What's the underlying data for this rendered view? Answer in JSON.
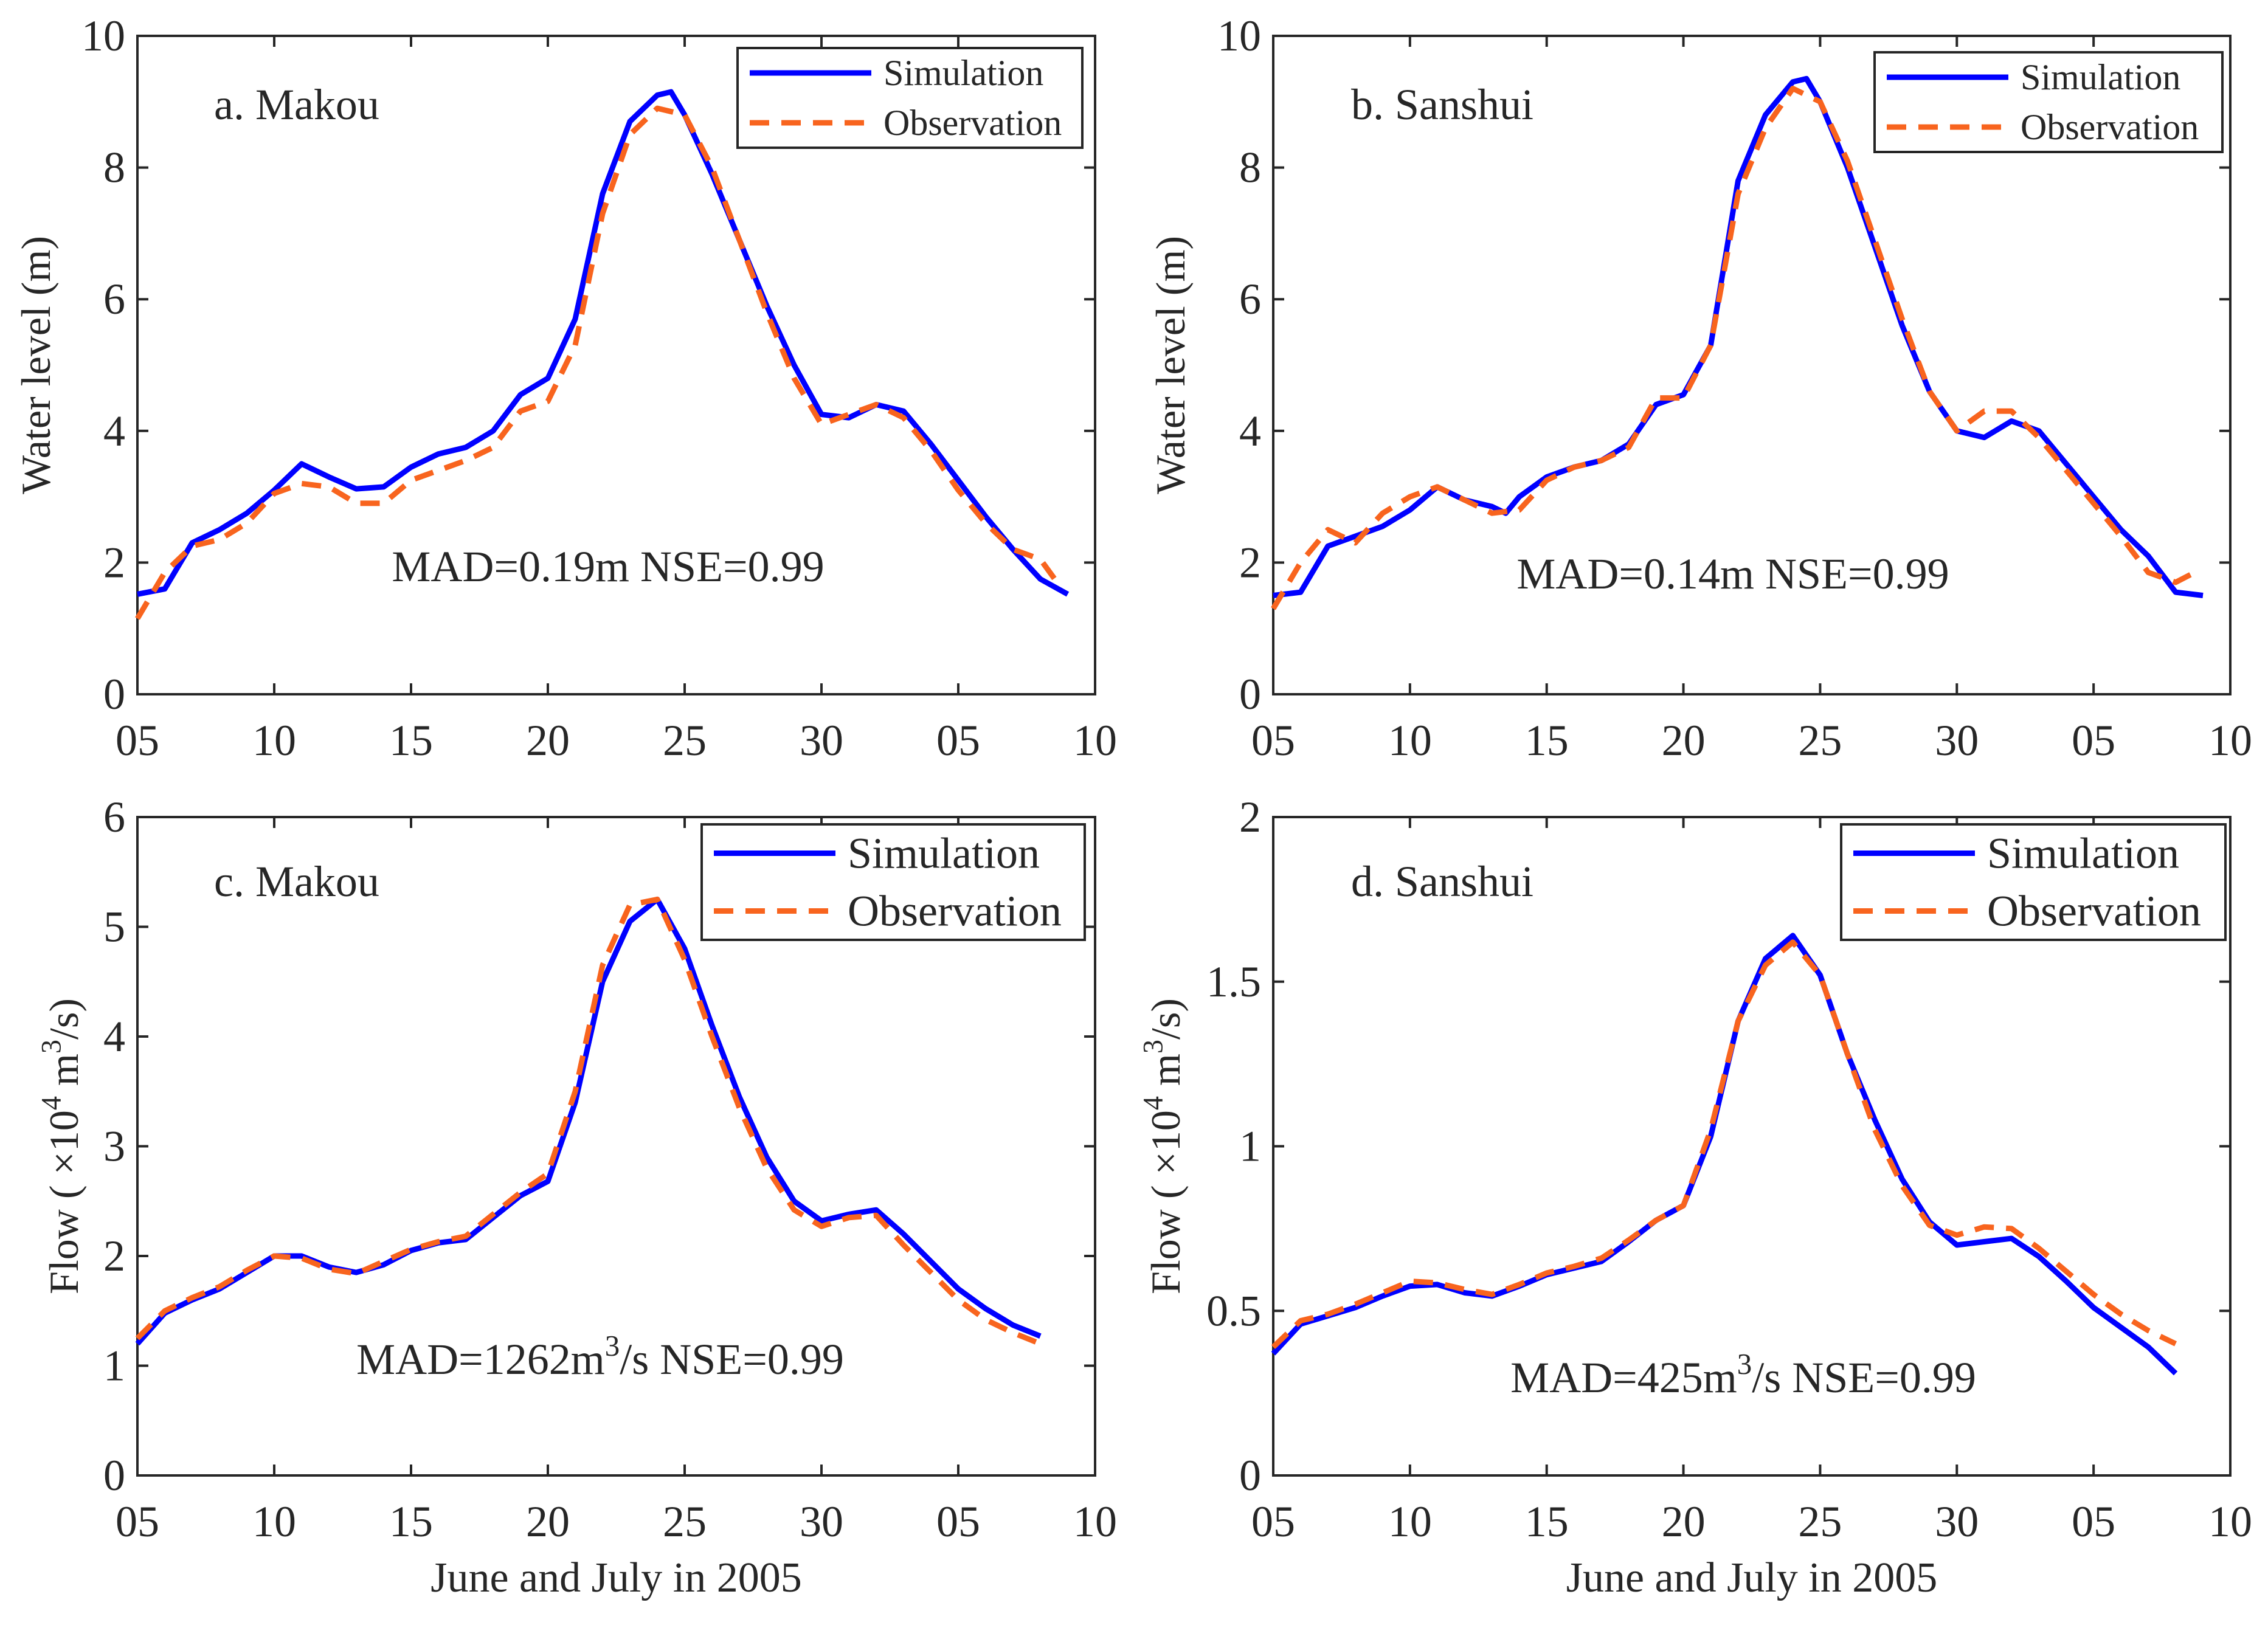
{
  "colors": {
    "simulation": "#0000FF",
    "observation": "#F8641E",
    "axis": "#262626"
  },
  "chart_data": [
    {
      "type": "line",
      "panel_label": "a. Makou",
      "ylabel": [
        {
          "t": "Water level (m)"
        }
      ],
      "xlabel": "",
      "xlim": [
        0,
        35
      ],
      "ylim": [
        0,
        10
      ],
      "xticks": [
        0,
        5,
        10,
        15,
        20,
        25,
        30,
        35
      ],
      "xtick_labels": [
        "05",
        "10",
        "15",
        "20",
        "25",
        "30",
        "05",
        "10"
      ],
      "yticks": [
        0,
        2,
        4,
        6,
        8,
        10
      ],
      "ytick_labels": [
        "0",
        "2",
        "4",
        "6",
        "8",
        "10"
      ],
      "legend": {
        "position": "top-right",
        "entries": [
          "Simulation",
          "Observation"
        ]
      },
      "annotation": [
        {
          "t": "MAD=0.19m NSE=0.99"
        }
      ],
      "series": [
        {
          "name": "Simulation",
          "x": [
            0,
            1,
            2,
            3,
            4,
            5,
            6,
            7,
            8,
            9,
            10,
            11,
            12,
            13,
            14,
            15,
            16,
            17,
            18,
            19,
            19.5,
            20,
            21,
            22,
            23,
            24,
            25,
            26,
            27,
            28,
            29,
            30,
            31,
            32,
            33,
            34
          ],
          "values": [
            1.52,
            1.6,
            2.3,
            2.5,
            2.75,
            3.1,
            3.5,
            3.3,
            3.12,
            3.15,
            3.45,
            3.65,
            3.75,
            4.0,
            4.55,
            4.8,
            5.7,
            7.6,
            8.7,
            9.1,
            9.15,
            8.8,
            7.9,
            6.9,
            5.9,
            5.0,
            4.25,
            4.2,
            4.4,
            4.3,
            3.8,
            3.25,
            2.7,
            2.2,
            1.75,
            1.52
          ]
        },
        {
          "name": "Observation",
          "x": [
            0,
            1,
            2,
            3,
            4,
            5,
            6,
            7,
            8,
            9,
            10,
            11,
            12,
            13,
            14,
            15,
            16,
            17,
            18,
            19,
            20,
            21,
            22,
            23,
            24,
            25,
            26,
            27,
            28,
            29,
            30,
            31,
            32,
            33,
            33.7
          ],
          "values": [
            1.15,
            1.85,
            2.25,
            2.35,
            2.6,
            3.05,
            3.2,
            3.15,
            2.9,
            2.9,
            3.25,
            3.4,
            3.55,
            3.75,
            4.3,
            4.45,
            5.3,
            7.3,
            8.5,
            8.9,
            8.8,
            8.0,
            6.9,
            5.8,
            4.8,
            4.1,
            4.25,
            4.4,
            4.2,
            3.7,
            3.1,
            2.6,
            2.2,
            2.05,
            1.65
          ]
        }
      ]
    },
    {
      "type": "line",
      "panel_label": "b. Sanshui",
      "ylabel": [
        {
          "t": "Water level (m)"
        }
      ],
      "xlabel": "",
      "xlim": [
        0,
        35
      ],
      "ylim": [
        0,
        10
      ],
      "xticks": [
        0,
        5,
        10,
        15,
        20,
        25,
        30,
        35
      ],
      "xtick_labels": [
        "05",
        "10",
        "15",
        "20",
        "25",
        "30",
        "05",
        "10"
      ],
      "yticks": [
        0,
        2,
        4,
        6,
        8,
        10
      ],
      "ytick_labels": [
        "0",
        "2",
        "4",
        "6",
        "8",
        "10"
      ],
      "legend": {
        "position": "top-right",
        "entries": [
          "Simulation",
          "Observation"
        ]
      },
      "annotation": [
        {
          "t": "MAD=0.14m NSE=0.99"
        }
      ],
      "series": [
        {
          "name": "Simulation",
          "x": [
            0,
            1,
            2,
            3,
            4,
            5,
            6,
            7,
            8,
            8.5,
            9,
            10,
            11,
            12,
            13,
            14,
            15,
            16,
            17,
            18,
            19,
            19.5,
            20,
            21,
            22,
            23,
            24,
            25,
            26,
            27,
            28,
            29,
            30,
            31,
            32,
            33,
            34
          ],
          "values": [
            1.5,
            1.55,
            2.25,
            2.4,
            2.55,
            2.8,
            3.15,
            2.95,
            2.85,
            2.75,
            3.0,
            3.3,
            3.45,
            3.55,
            3.8,
            4.4,
            4.55,
            5.3,
            7.8,
            8.8,
            9.3,
            9.35,
            9.0,
            8.0,
            6.8,
            5.6,
            4.6,
            4.0,
            3.9,
            4.15,
            4.0,
            3.5,
            3.0,
            2.5,
            2.1,
            1.55,
            1.5
          ]
        },
        {
          "name": "Observation",
          "x": [
            0,
            1,
            2,
            3,
            4,
            5,
            6,
            7,
            8,
            9,
            10,
            11,
            12,
            13,
            14,
            15,
            16,
            17,
            18,
            19,
            20,
            21,
            22,
            23,
            24,
            25,
            26,
            27,
            28,
            29,
            30,
            31,
            32,
            33,
            33.7
          ],
          "values": [
            1.3,
            2.0,
            2.5,
            2.3,
            2.75,
            3.0,
            3.15,
            2.95,
            2.75,
            2.8,
            3.25,
            3.45,
            3.55,
            3.75,
            4.5,
            4.5,
            5.3,
            7.6,
            8.6,
            9.2,
            9.0,
            8.1,
            6.9,
            5.7,
            4.6,
            4.0,
            4.3,
            4.3,
            3.9,
            3.4,
            2.9,
            2.4,
            1.85,
            1.7,
            1.85
          ]
        }
      ]
    },
    {
      "type": "line",
      "panel_label": "c. Makou",
      "ylabel": [
        {
          "t": "Flow ( ×10"
        },
        {
          "t": "4",
          "sup": true
        },
        {
          "t": " m"
        },
        {
          "t": "3",
          "sup": true
        },
        {
          "t": "/s)"
        }
      ],
      "xlabel": "June and July in 2005",
      "xlim": [
        0,
        35
      ],
      "ylim": [
        0,
        6
      ],
      "xticks": [
        0,
        5,
        10,
        15,
        20,
        25,
        30,
        35
      ],
      "xtick_labels": [
        "05",
        "10",
        "15",
        "20",
        "25",
        "30",
        "05",
        "10"
      ],
      "yticks": [
        0,
        1,
        2,
        3,
        4,
        5,
        6
      ],
      "ytick_labels": [
        "0",
        "1",
        "2",
        "3",
        "4",
        "5",
        "6"
      ],
      "legend": {
        "position": "top-right",
        "entries": [
          "Simulation",
          "Observation"
        ]
      },
      "annotation": [
        {
          "t": "MAD=1262m"
        },
        {
          "t": "3",
          "sup": true
        },
        {
          "t": "/s NSE=0.99"
        }
      ],
      "series": [
        {
          "name": "Simulation",
          "x": [
            0,
            1,
            2,
            3,
            4,
            5,
            6,
            7,
            8,
            9,
            10,
            11,
            12,
            13,
            14,
            15,
            16,
            17,
            18,
            19,
            20,
            21,
            22,
            23,
            24,
            25,
            26,
            27,
            28,
            29,
            30,
            31,
            32,
            33
          ],
          "values": [
            1.2,
            1.48,
            1.6,
            1.7,
            1.85,
            2.0,
            2.0,
            1.9,
            1.85,
            1.92,
            2.05,
            2.12,
            2.15,
            2.35,
            2.55,
            2.68,
            3.4,
            4.5,
            5.05,
            5.25,
            4.8,
            4.1,
            3.45,
            2.9,
            2.5,
            2.32,
            2.38,
            2.42,
            2.2,
            1.95,
            1.7,
            1.52,
            1.37,
            1.27
          ]
        },
        {
          "name": "Observation",
          "x": [
            0,
            1,
            2,
            3,
            4,
            5,
            6,
            7,
            8,
            9,
            10,
            11,
            12,
            13,
            14,
            15,
            16,
            17,
            18,
            19,
            20,
            21,
            22,
            23,
            24,
            25,
            26,
            27,
            28,
            29,
            30,
            31,
            32,
            33
          ],
          "values": [
            1.25,
            1.5,
            1.62,
            1.72,
            1.87,
            2.0,
            1.98,
            1.88,
            1.84,
            1.95,
            2.06,
            2.13,
            2.18,
            2.38,
            2.58,
            2.75,
            3.5,
            4.65,
            5.2,
            5.25,
            4.7,
            4.0,
            3.35,
            2.8,
            2.42,
            2.27,
            2.35,
            2.37,
            2.1,
            1.85,
            1.6,
            1.42,
            1.3,
            1.2
          ]
        }
      ]
    },
    {
      "type": "line",
      "panel_label": "d. Sanshui",
      "ylabel": [
        {
          "t": "Flow ( ×10"
        },
        {
          "t": "4",
          "sup": true
        },
        {
          "t": " m"
        },
        {
          "t": "3",
          "sup": true
        },
        {
          "t": "/s)"
        }
      ],
      "xlabel": "June and July in 2005",
      "xlim": [
        0,
        35
      ],
      "ylim": [
        0,
        2
      ],
      "xticks": [
        0,
        5,
        10,
        15,
        20,
        25,
        30,
        35
      ],
      "xtick_labels": [
        "05",
        "10",
        "15",
        "20",
        "25",
        "30",
        "05",
        "10"
      ],
      "yticks": [
        0,
        0.5,
        1,
        1.5,
        2
      ],
      "ytick_labels": [
        "0",
        "0.5",
        "1",
        "1.5",
        "2"
      ],
      "legend": {
        "position": "top-right",
        "entries": [
          "Simulation",
          "Observation"
        ]
      },
      "annotation": [
        {
          "t": "MAD=425m"
        },
        {
          "t": "3",
          "sup": true
        },
        {
          "t": "/s NSE=0.99"
        }
      ],
      "series": [
        {
          "name": "Simulation",
          "x": [
            0,
            1,
            2,
            3,
            4,
            5,
            6,
            7,
            8,
            9,
            10,
            11,
            12,
            13,
            14,
            15,
            16,
            17,
            18,
            19,
            20,
            21,
            22,
            23,
            24,
            25,
            26,
            27,
            28,
            29,
            30,
            31,
            32,
            33
          ],
          "values": [
            0.37,
            0.46,
            0.485,
            0.51,
            0.545,
            0.575,
            0.58,
            0.555,
            0.545,
            0.575,
            0.61,
            0.63,
            0.65,
            0.71,
            0.775,
            0.82,
            1.03,
            1.38,
            1.57,
            1.64,
            1.52,
            1.28,
            1.08,
            0.9,
            0.77,
            0.7,
            0.71,
            0.72,
            0.665,
            0.59,
            0.51,
            0.45,
            0.39,
            0.31
          ]
        },
        {
          "name": "Observation",
          "x": [
            0,
            1,
            2,
            3,
            4,
            5,
            6,
            7,
            8,
            9,
            10,
            11,
            12,
            13,
            14,
            15,
            16,
            17,
            18,
            19,
            20,
            21,
            22,
            23,
            24,
            25,
            26,
            27,
            28,
            29,
            30,
            31,
            32,
            33
          ],
          "values": [
            0.39,
            0.47,
            0.49,
            0.52,
            0.555,
            0.59,
            0.585,
            0.565,
            0.55,
            0.58,
            0.615,
            0.635,
            0.66,
            0.715,
            0.775,
            0.82,
            1.05,
            1.38,
            1.55,
            1.62,
            1.52,
            1.28,
            1.05,
            0.88,
            0.76,
            0.73,
            0.755,
            0.75,
            0.69,
            0.62,
            0.55,
            0.49,
            0.44,
            0.4
          ]
        }
      ]
    }
  ]
}
